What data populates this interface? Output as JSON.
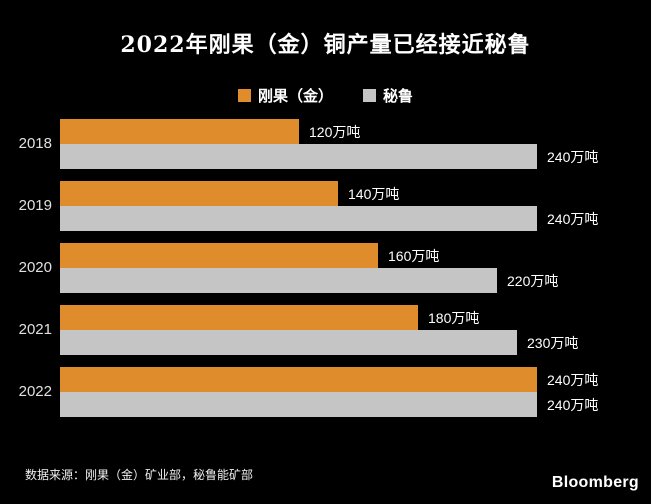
{
  "title": "2022年刚果（金）铜产量已经接近秘鲁",
  "legend": [
    {
      "label": "刚果（金）",
      "color": "#DF8C2C"
    },
    {
      "label": "秘鲁",
      "color": "#C5C5C5"
    }
  ],
  "chart_data": {
    "type": "bar",
    "orientation": "horizontal",
    "title": "2022年刚果（金）铜产量已经接近秘鲁",
    "categories": [
      "2018",
      "2019",
      "2020",
      "2021",
      "2022"
    ],
    "series": [
      {
        "name": "刚果（金）",
        "color": "#DF8C2C",
        "values": [
          120,
          140,
          160,
          180,
          240
        ]
      },
      {
        "name": "秘鲁",
        "color": "#C5C5C5",
        "values": [
          240,
          240,
          220,
          230,
          240
        ]
      }
    ],
    "unit": "万吨",
    "data_labels": [
      [
        "120万吨",
        "140万吨",
        "160万吨",
        "180万吨",
        "240万吨"
      ],
      [
        "240万吨",
        "240万吨",
        "220万吨",
        "230万吨",
        "240万吨"
      ]
    ],
    "xlim": [
      0,
      240
    ],
    "grid": false,
    "legend_position": "top-center",
    "background": "#000000"
  },
  "footer": {
    "source": "数据来源：刚果（金）矿业部，秘鲁能矿部",
    "logo": "Bloomberg"
  }
}
